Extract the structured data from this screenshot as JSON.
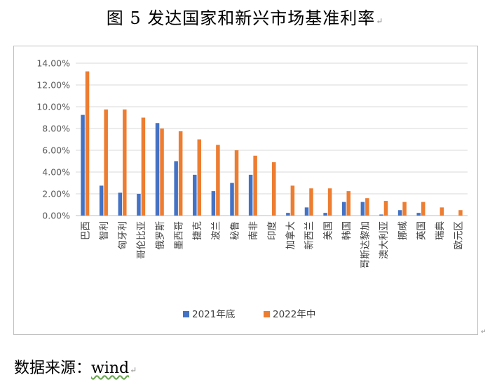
{
  "document": {
    "title": "图 5  发达国家和新兴市场基准利率",
    "source_label": "数据来源：",
    "source_value": "wind",
    "paragraph_mark": "↵"
  },
  "chart_data": {
    "type": "bar",
    "title": "",
    "xlabel": "",
    "ylabel": "",
    "ylim": [
      0,
      14
    ],
    "yticks": [
      "0.00%",
      "2.00%",
      "4.00%",
      "6.00%",
      "8.00%",
      "10.00%",
      "12.00%",
      "14.00%"
    ],
    "grid": true,
    "legend_position": "bottom",
    "categories": [
      "巴西",
      "智利",
      "匈牙利",
      "哥伦比亚",
      "俄罗斯",
      "墨西哥",
      "捷克",
      "波兰",
      "秘鲁",
      "南非",
      "印度",
      "加拿大",
      "新西兰",
      "美国",
      "韩国",
      "哥斯达黎加",
      "澳大利亚",
      "挪威",
      "英国",
      "瑞典",
      "欧元区"
    ],
    "series": [
      {
        "name": "2021年底",
        "color": "#4472c4",
        "values": [
          9.25,
          2.75,
          2.1,
          2.0,
          8.5,
          5.0,
          3.75,
          2.25,
          3.0,
          3.75,
          0.0,
          0.25,
          0.75,
          0.25,
          1.25,
          1.25,
          0.1,
          0.5,
          0.25,
          0.0,
          0.0
        ]
      },
      {
        "name": "2022年中",
        "color": "#ed7d31",
        "values": [
          13.25,
          9.75,
          9.75,
          9.0,
          8.0,
          7.75,
          7.0,
          6.5,
          6.0,
          5.5,
          4.9,
          2.75,
          2.5,
          2.5,
          2.25,
          1.6,
          1.35,
          1.25,
          1.25,
          0.75,
          0.5
        ]
      }
    ]
  }
}
